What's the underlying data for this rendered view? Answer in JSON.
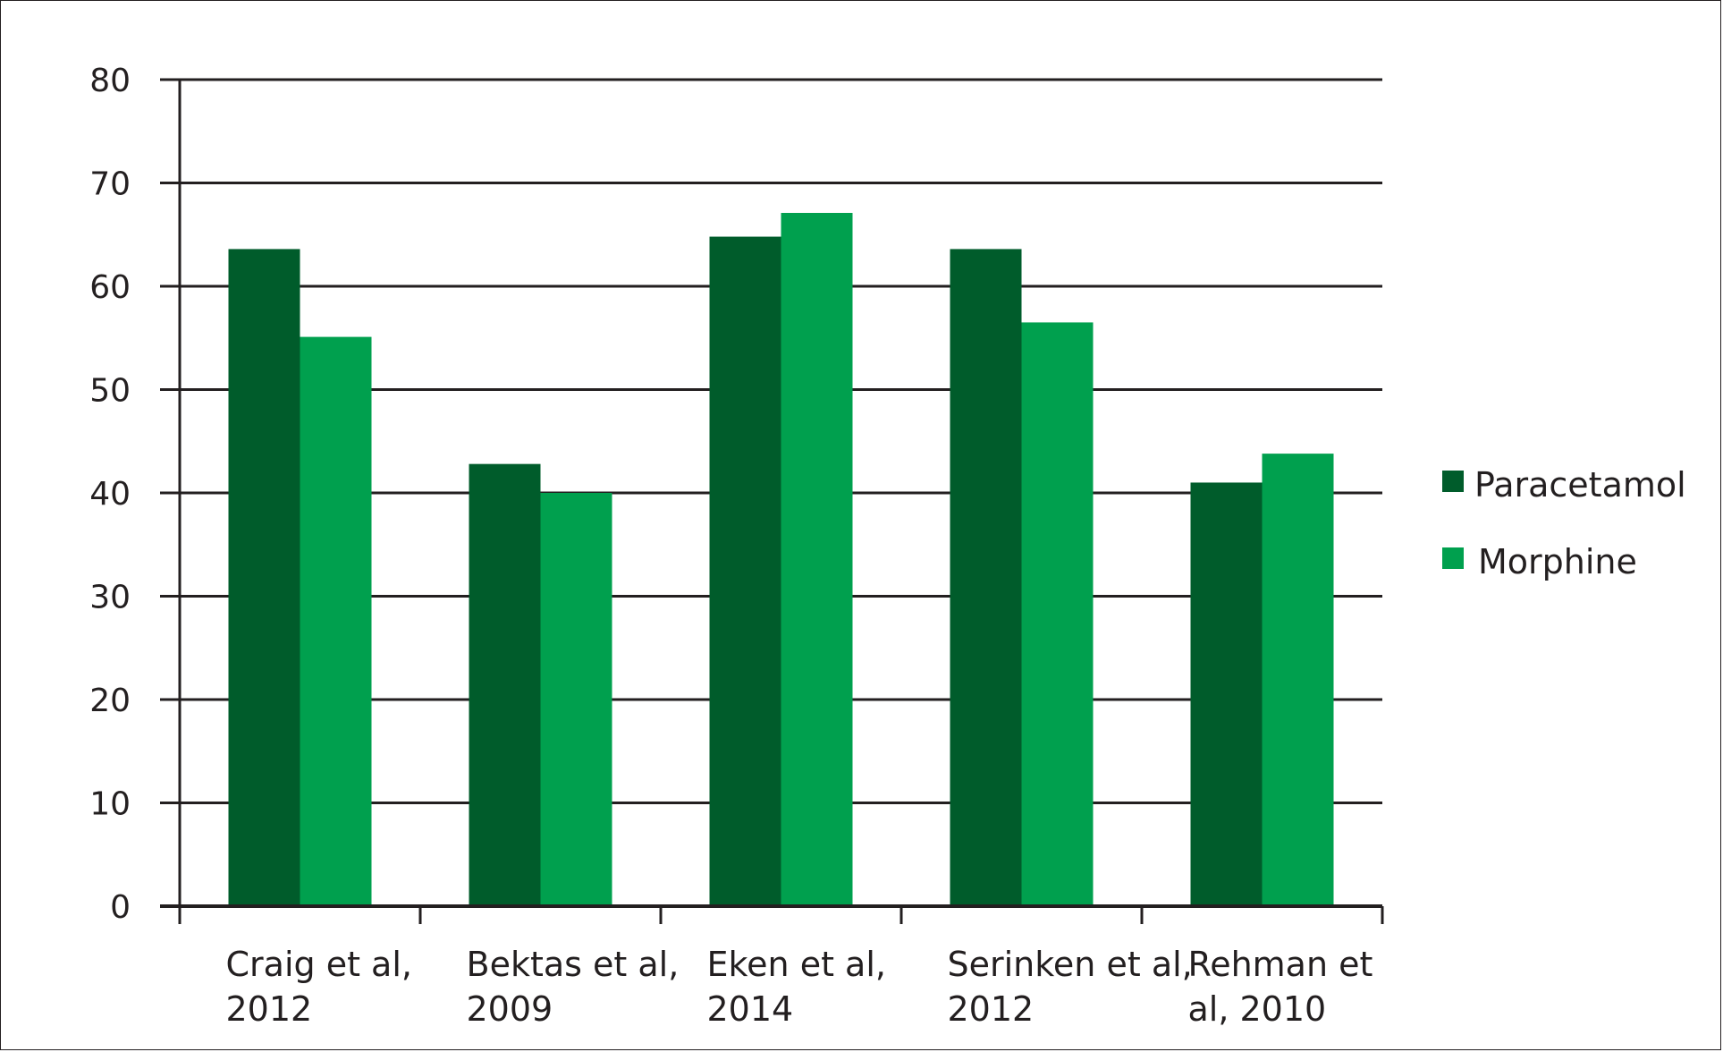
{
  "chart_data": {
    "type": "bar",
    "title": "",
    "xlabel": "",
    "ylabel": "",
    "ylim": [
      0,
      80
    ],
    "yticks": [
      0,
      10,
      20,
      30,
      40,
      50,
      60,
      70,
      80
    ],
    "grid": true,
    "legend_position": "right",
    "categories": [
      [
        "Craig et al,",
        "2012"
      ],
      [
        "Bektas et al,",
        "2009"
      ],
      [
        "Eken et al,",
        "2014"
      ],
      [
        "Serinken et al,",
        "2012"
      ],
      [
        "Rehman et",
        "al, 2010"
      ]
    ],
    "series": [
      {
        "name": "Paracetamol",
        "color": "#005c2b",
        "values": [
          63.6,
          42.8,
          64.8,
          63.6,
          41.0
        ]
      },
      {
        "name": "Morphine",
        "color": "#00a04e",
        "values": [
          55.1,
          40.0,
          67.1,
          56.5,
          43.8
        ]
      }
    ]
  }
}
